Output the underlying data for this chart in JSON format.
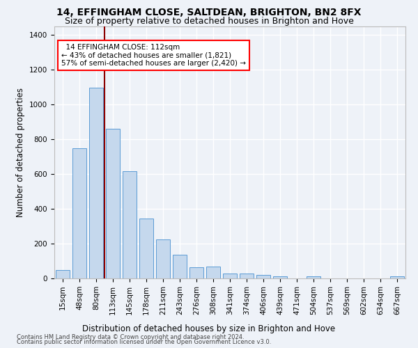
{
  "title": "14, EFFINGHAM CLOSE, SALTDEAN, BRIGHTON, BN2 8FX",
  "subtitle": "Size of property relative to detached houses in Brighton and Hove",
  "xlabel": "Distribution of detached houses by size in Brighton and Hove",
  "ylabel": "Number of detached properties",
  "footer_line1": "Contains HM Land Registry data © Crown copyright and database right 2024.",
  "footer_line2": "Contains public sector information licensed under the Open Government Licence v3.0.",
  "categories": [
    "15sqm",
    "48sqm",
    "80sqm",
    "113sqm",
    "145sqm",
    "178sqm",
    "211sqm",
    "243sqm",
    "276sqm",
    "308sqm",
    "341sqm",
    "374sqm",
    "406sqm",
    "439sqm",
    "471sqm",
    "504sqm",
    "537sqm",
    "569sqm",
    "602sqm",
    "634sqm",
    "667sqm"
  ],
  "values": [
    50,
    748,
    1098,
    862,
    615,
    345,
    225,
    135,
    65,
    70,
    30,
    30,
    22,
    14,
    0,
    12,
    0,
    0,
    0,
    0,
    12
  ],
  "bar_color": "#c5d8ed",
  "bar_edge_color": "#5b9bd5",
  "ylim": [
    0,
    1450
  ],
  "yticks": [
    0,
    200,
    400,
    600,
    800,
    1000,
    1200,
    1400
  ],
  "property_label": "14 EFFINGHAM CLOSE: 112sqm",
  "pct_smaller": "43% of detached houses are smaller (1,821)",
  "pct_larger": "57% of semi-detached houses are larger (2,420)",
  "vline_x": 2.5,
  "bg_color": "#eef2f8",
  "grid_color": "#ffffff",
  "title_fontsize": 10,
  "subtitle_fontsize": 9,
  "axis_label_fontsize": 8.5,
  "tick_fontsize": 7.5,
  "footer_fontsize": 6.0
}
